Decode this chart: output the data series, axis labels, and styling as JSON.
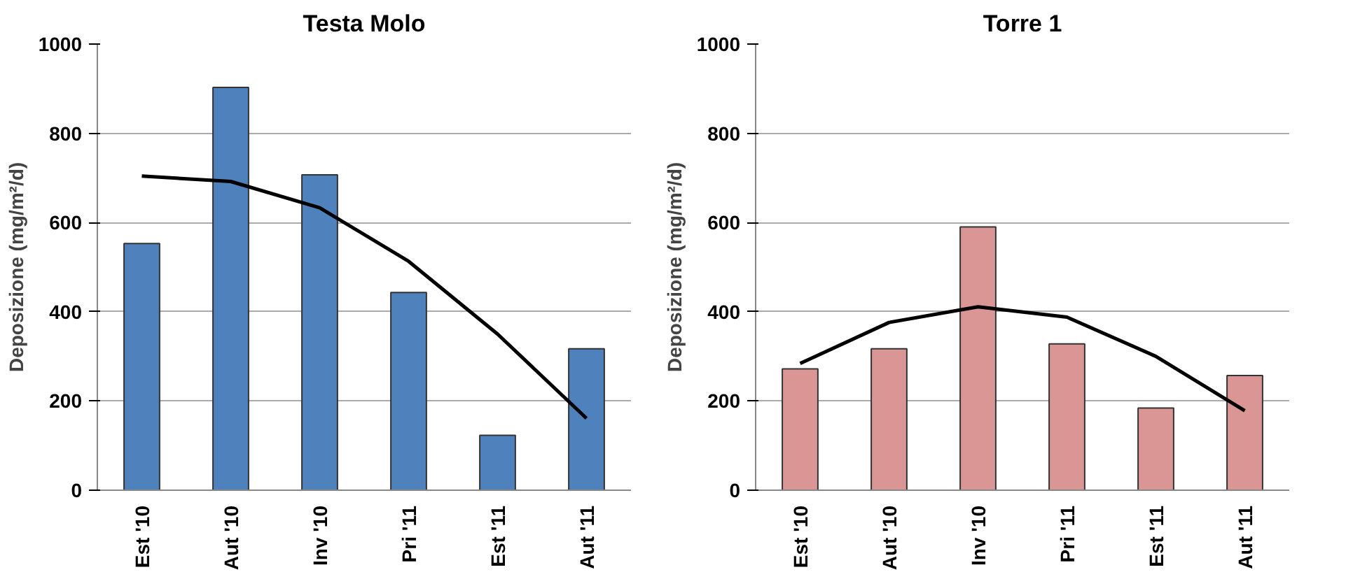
{
  "chart_data": [
    {
      "type": "bar",
      "title": "Testa Molo",
      "ylabel": "Deposizione (mg/m²/d)",
      "categories": [
        "Est '10",
        "Aut '10",
        "Inv '10",
        "Pri '11",
        "Est '11",
        "Aut '11"
      ],
      "ylim": [
        0,
        1000
      ],
      "yticks": [
        0,
        200,
        400,
        600,
        800,
        1000
      ],
      "grid": "y",
      "series": [
        {
          "color": "#4f81bd",
          "values": [
            553,
            903,
            707,
            443,
            123,
            317
          ]
        },
        {
          "type": "line",
          "color": "#000000",
          "values": [
            704,
            692,
            633,
            513,
            350,
            161
          ]
        }
      ]
    },
    {
      "type": "bar",
      "title": "Torre 1",
      "ylabel": "Deposizione (mg/m²/d)",
      "categories": [
        "Est '10",
        "Aut '10",
        "Inv '10",
        "Pri '11",
        "Est '11",
        "Aut '11"
      ],
      "ylim": [
        0,
        1000
      ],
      "yticks": [
        0,
        200,
        400,
        600,
        800,
        1000
      ],
      "grid": "y",
      "series": [
        {
          "color": "#d99694",
          "values": [
            272,
            317,
            590,
            328,
            184,
            257
          ]
        },
        {
          "type": "line",
          "color": "#000000",
          "values": [
            284,
            376,
            411,
            388,
            300,
            178
          ]
        }
      ]
    }
  ]
}
